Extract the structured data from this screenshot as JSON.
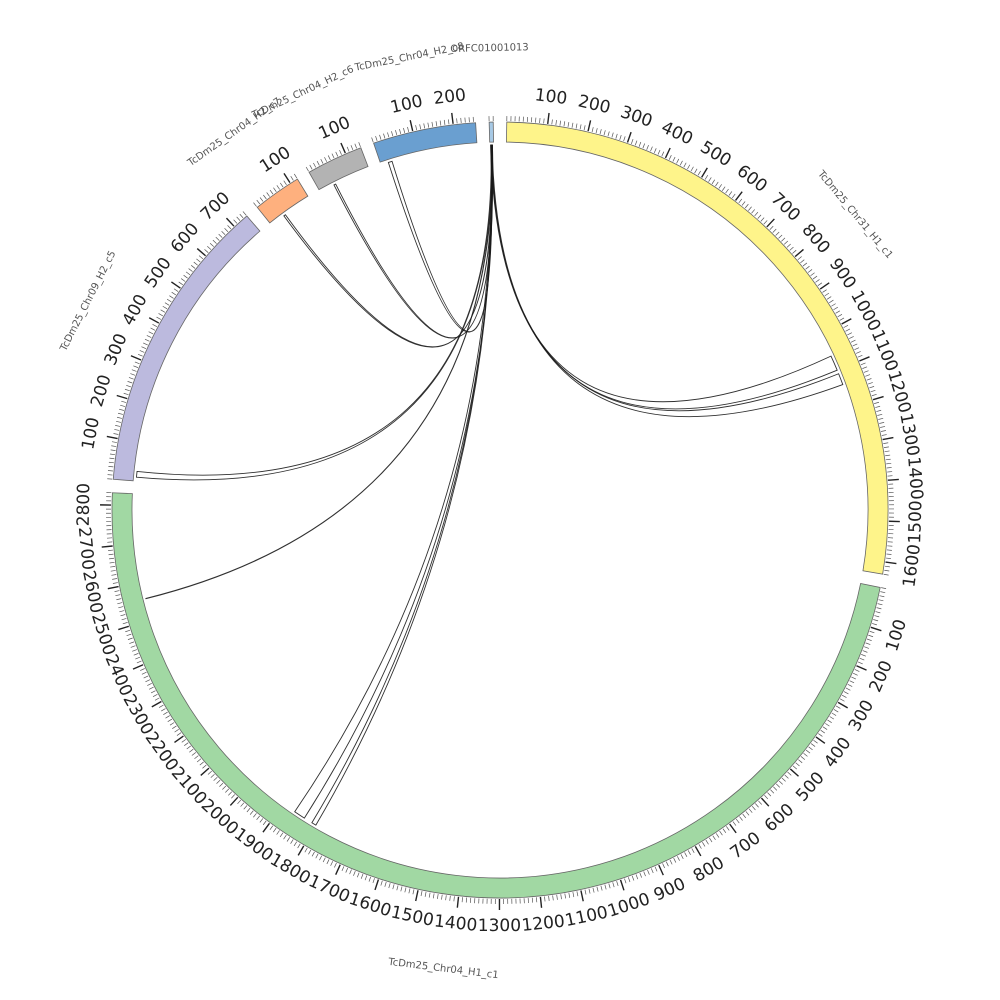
{
  "chart_data": {
    "type": "circos",
    "start_angle_deg": -90,
    "gap_deg": 2,
    "segments": [
      {
        "id": "chr31_h1",
        "name": "TcDm25_Chr31_H1_c1",
        "length": 1630,
        "color": "#fef48a",
        "major_tick": 100,
        "minor_tick": 10,
        "show_tick_labels": true
      },
      {
        "id": "chr04_h1",
        "name": "TcDm25_Chr04_H1_c1",
        "length": 2830,
        "color": "#a1d8a3",
        "major_tick": 100,
        "minor_tick": 10,
        "show_tick_labels": true
      },
      {
        "id": "chr09_h2",
        "name": "TcDm25_Chr09_H2_c5",
        "length": 740,
        "color": "#bcbade",
        "major_tick": 100,
        "minor_tick": 10,
        "show_tick_labels": true
      },
      {
        "id": "chr04_h2_c7",
        "name": "TcDm25_Chr04_H2_c7",
        "length": 120,
        "color": "#feb07e",
        "major_tick": 100,
        "minor_tick": 10,
        "show_tick_labels": true
      },
      {
        "id": "chr04_h2_c6",
        "name": "TcDm25_Chr04_H2_c6",
        "length": 140,
        "color": "#b3b3b3",
        "major_tick": 100,
        "minor_tick": 10,
        "show_tick_labels": true
      },
      {
        "id": "chr04_h2_c8",
        "name": "TcDm25_Chr04_H2_c8",
        "length": 255,
        "color": "#6a9fd0",
        "major_tick": 100,
        "minor_tick": 10,
        "show_tick_labels": true
      },
      {
        "id": "orfc",
        "name": "ORFC01001013",
        "length": 10,
        "color": "#a7c9e5",
        "major_tick": 100,
        "minor_tick": 10,
        "show_tick_labels": false
      }
    ],
    "links": [
      {
        "from": [
          "orfc",
          2,
          4
        ],
        "to": [
          "chr31_h1",
          1060,
          1100
        ]
      },
      {
        "from": [
          "orfc",
          4,
          6
        ],
        "to": [
          "chr31_h1",
          1110,
          1140
        ]
      },
      {
        "from": [
          "orfc",
          3,
          5
        ],
        "to": [
          "chr09_h2",
          10,
          25
        ]
      },
      {
        "from": [
          "orfc",
          5,
          6
        ],
        "to": [
          "chr04_h2_c7",
          40,
          45
        ]
      },
      {
        "from": [
          "orfc",
          5,
          6
        ],
        "to": [
          "chr04_h2_c6",
          40,
          45
        ]
      },
      {
        "from": [
          "orfc",
          3,
          4
        ],
        "to": [
          "chr04_h2_c8",
          20,
          30
        ]
      },
      {
        "from": [
          "orfc",
          6,
          7
        ],
        "to": [
          "chr04_h1",
          2555,
          2556
        ]
      },
      {
        "from": [
          "orfc",
          4,
          7
        ],
        "to": [
          "chr04_h1",
          1835,
          1865
        ]
      },
      {
        "from": [
          "orfc",
          5,
          6
        ],
        "to": [
          "chr04_h1",
          1800,
          1812
        ]
      }
    ]
  }
}
